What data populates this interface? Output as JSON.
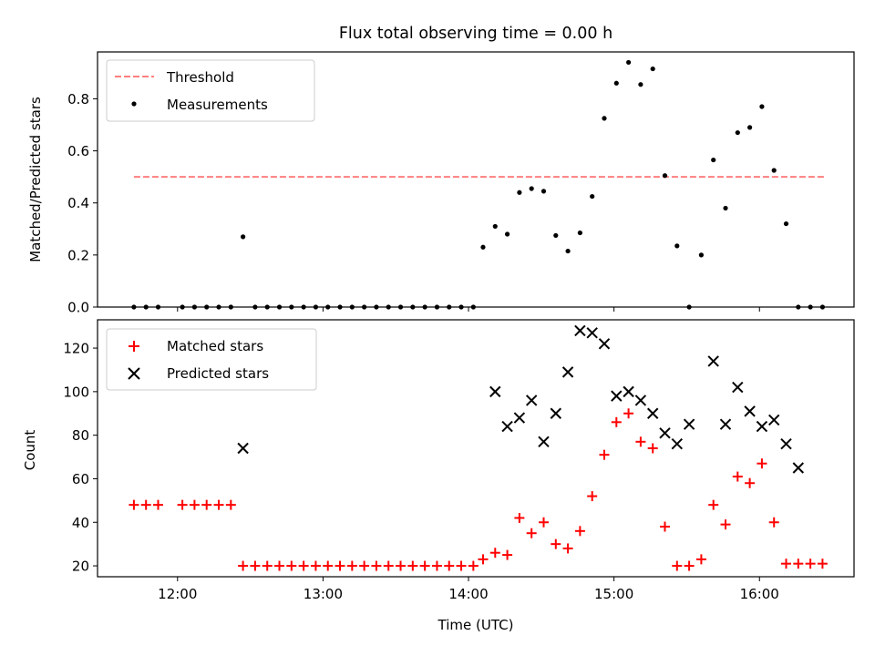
{
  "title": "Flux total observing time = 0.00 h",
  "colors": {
    "threshold": "#ff7f7f",
    "measurement": "#000000",
    "matched": "#ff0000",
    "predicted": "#000000"
  },
  "chart_data": [
    {
      "type": "scatter",
      "title": "Flux total observing time = 0.00 h",
      "xlabel": "",
      "ylabel": "Matched/Predicted stars",
      "xlim": [
        "11:27",
        "16:39"
      ],
      "ylim": [
        0,
        0.98
      ],
      "yticks": [
        "0.0",
        "0.2",
        "0.4",
        "0.6",
        "0.8"
      ],
      "legend_position": "top-left",
      "legend": [
        "Threshold",
        "Measurements"
      ],
      "threshold": {
        "name": "Threshold",
        "style": "dashed",
        "value": 0.5,
        "x_start": "11:42",
        "x_end": "16:27"
      },
      "series": [
        {
          "name": "Measurements",
          "marker": "dot",
          "x": [
            "11:42",
            "11:47",
            "11:52",
            "12:02",
            "12:07",
            "12:12",
            "12:17",
            "12:22",
            "12:27",
            "12:32",
            "12:37",
            "12:42",
            "12:47",
            "12:52",
            "12:57",
            "13:02",
            "13:07",
            "13:12",
            "13:17",
            "13:22",
            "13:27",
            "13:32",
            "13:37",
            "13:42",
            "13:47",
            "13:52",
            "13:57",
            "14:02",
            "14:06",
            "14:11",
            "14:16",
            "14:21",
            "14:26",
            "14:31",
            "14:36",
            "14:41",
            "14:46",
            "14:51",
            "14:56",
            "15:01",
            "15:06",
            "15:11",
            "15:16",
            "15:21",
            "15:26",
            "15:31",
            "15:36",
            "15:41",
            "15:46",
            "15:51",
            "15:56",
            "16:01",
            "16:06",
            "16:11",
            "16:16",
            "16:21",
            "16:26"
          ],
          "y": [
            0,
            0,
            0,
            0,
            0,
            0,
            0,
            0,
            0.27,
            0,
            0,
            0,
            0,
            0,
            0,
            0,
            0,
            0,
            0,
            0,
            0,
            0,
            0,
            0,
            0,
            0,
            0,
            0,
            0.23,
            0.31,
            0.28,
            0.44,
            0.455,
            0.445,
            0.275,
            0.215,
            0.285,
            0.425,
            0.725,
            0.86,
            0.94,
            0.855,
            0.915,
            0.505,
            0.235,
            0,
            0.2,
            0.565,
            0.38,
            0.67,
            0.69,
            0.77,
            0.525,
            0.32,
            0,
            0,
            0
          ]
        }
      ]
    },
    {
      "type": "scatter",
      "title": "",
      "xlabel": "Time (UTC)",
      "ylabel": "Count",
      "xlim": [
        "11:27",
        "16:39"
      ],
      "ylim": [
        15,
        133
      ],
      "yticks": [
        "20",
        "40",
        "60",
        "80",
        "100",
        "120"
      ],
      "xticks": [
        "12:00",
        "13:00",
        "14:00",
        "15:00",
        "16:00"
      ],
      "legend_position": "top-left",
      "legend": [
        "Matched stars",
        "Predicted stars"
      ],
      "series": [
        {
          "name": "Matched stars",
          "marker": "plus",
          "x": [
            "11:42",
            "11:47",
            "11:52",
            "12:02",
            "12:07",
            "12:12",
            "12:17",
            "12:22",
            "12:27",
            "12:32",
            "12:37",
            "12:42",
            "12:47",
            "12:52",
            "12:57",
            "13:02",
            "13:07",
            "13:12",
            "13:17",
            "13:22",
            "13:27",
            "13:32",
            "13:37",
            "13:42",
            "13:47",
            "13:52",
            "13:57",
            "14:02",
            "14:06",
            "14:11",
            "14:16",
            "14:21",
            "14:26",
            "14:31",
            "14:36",
            "14:41",
            "14:46",
            "14:51",
            "14:56",
            "15:01",
            "15:06",
            "15:11",
            "15:16",
            "15:21",
            "15:26",
            "15:31",
            "15:36",
            "15:41",
            "15:46",
            "15:51",
            "15:56",
            "16:01",
            "16:06",
            "16:11",
            "16:16",
            "16:21",
            "16:26"
          ],
          "y": [
            48,
            48,
            48,
            48,
            48,
            48,
            48,
            48,
            20,
            20,
            20,
            20,
            20,
            20,
            20,
            20,
            20,
            20,
            20,
            20,
            20,
            20,
            20,
            20,
            20,
            20,
            20,
            20,
            23,
            26,
            25,
            42,
            35,
            40,
            30,
            28,
            36,
            52,
            71,
            86,
            90,
            77,
            74,
            38,
            20,
            20,
            23,
            48,
            39,
            61,
            58,
            67,
            40,
            21,
            21,
            21,
            21
          ]
        },
        {
          "name": "Predicted stars",
          "marker": "x",
          "x": [
            "12:27",
            "14:11",
            "14:16",
            "14:21",
            "14:26",
            "14:31",
            "14:36",
            "14:41",
            "14:46",
            "14:51",
            "14:56",
            "15:01",
            "15:06",
            "15:11",
            "15:16",
            "15:21",
            "15:26",
            "15:31",
            "15:41",
            "15:46",
            "15:51",
            "15:56",
            "16:01",
            "16:06",
            "16:11",
            "16:16"
          ],
          "y": [
            74,
            100,
            84,
            88,
            96,
            77,
            90,
            109,
            128,
            127,
            122,
            98,
            100,
            96,
            90,
            81,
            76,
            85,
            114,
            85,
            102,
            91,
            84,
            87,
            76,
            65
          ]
        }
      ]
    }
  ]
}
